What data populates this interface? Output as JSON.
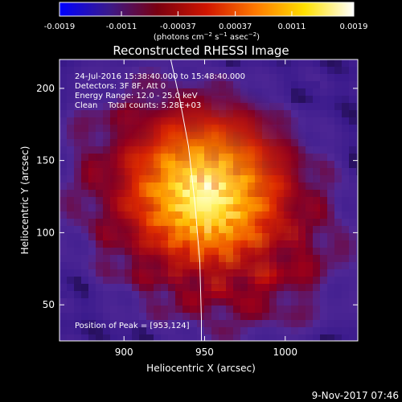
{
  "colorbar": {
    "tick_labels": [
      "-0.0019",
      "-0.0011",
      "-0.00037",
      "0.00037",
      "0.0011",
      "0.0019"
    ],
    "tick_values": [
      -0.0019,
      -0.0011,
      -0.00037,
      0.00037,
      0.0011,
      0.0019
    ],
    "range": [
      -0.0019,
      0.0019
    ],
    "stops": [
      "#0000ff",
      "#3a1a8c",
      "#7a0010",
      "#d01500",
      "#ff7a00",
      "#ffe000",
      "#ffffff"
    ],
    "units_text": "(photons cm",
    "units_sup1": "−2",
    "units_mid": " s",
    "units_sup2": "−1",
    "units_mid2": " asec",
    "units_sup3": "−2",
    "units_end": ")"
  },
  "plot": {
    "title": "Reconstructed RHESSI Image",
    "info_lines": [
      "24-Jul-2016 15:38:40.000 to 15:48:40.000",
      "Detectors: 3F 8F, Att 0",
      "Energy Range: 12.0 - 25.0 keV",
      "Clean    Total counts: 5.28E+03"
    ],
    "peak_text": "Position of Peak = [953,124]",
    "peak": [
      953,
      124
    ],
    "xlabel": "Heliocentric X (arcsec)",
    "ylabel": "Heliocentric Y (arcsec)",
    "x_range": [
      860,
      1045
    ],
    "y_range": [
      25,
      220
    ],
    "x_ticks": [
      900,
      950,
      1000
    ],
    "y_ticks": [
      50,
      100,
      150,
      200
    ],
    "x_tick_labels": [
      "900",
      "950",
      "1000"
    ],
    "y_tick_labels": [
      "50",
      "100",
      "150",
      "200"
    ],
    "limb_curve": [
      [
        929,
        220
      ],
      [
        935,
        190
      ],
      [
        940,
        160
      ],
      [
        944,
        120
      ],
      [
        947,
        80
      ],
      [
        948,
        40
      ],
      [
        948,
        25
      ]
    ]
  },
  "footer": {
    "timestamp": "9-Nov-2017 07:46"
  }
}
